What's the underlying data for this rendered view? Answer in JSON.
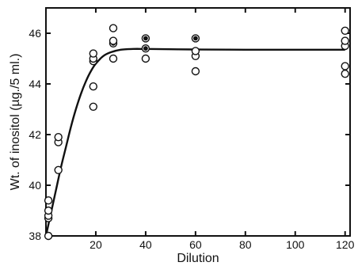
{
  "chart_data": {
    "type": "scatter",
    "xlabel": "Dilution",
    "ylabel": "Wt. of inositol (µg./5 ml.)",
    "xlim": [
      0,
      122
    ],
    "ylim": [
      38,
      47
    ],
    "x_ticks": [
      20,
      40,
      60,
      80,
      100,
      120
    ],
    "y_ticks": [
      38,
      40,
      42,
      44,
      46
    ],
    "grid": false,
    "series": [
      {
        "points": [
          [
            1,
            38.0
          ],
          [
            1,
            38.7
          ],
          [
            1,
            38.8
          ],
          [
            1,
            39.0
          ],
          [
            1,
            39.4
          ],
          [
            5,
            40.6
          ],
          [
            5,
            41.7
          ],
          [
            5,
            41.9
          ],
          [
            19,
            43.1
          ],
          [
            19,
            43.9
          ],
          [
            19,
            44.9
          ],
          [
            19,
            45.0
          ],
          [
            19,
            45.2
          ],
          [
            27,
            45.0
          ],
          [
            27,
            45.6
          ],
          [
            27,
            45.7
          ],
          [
            27,
            46.2
          ],
          [
            40,
            45.0
          ],
          [
            40,
            45.4
          ],
          [
            40,
            45.8
          ],
          [
            60,
            44.5
          ],
          [
            60,
            45.1
          ],
          [
            60,
            45.3
          ],
          [
            60,
            45.8
          ],
          [
            120,
            44.4
          ],
          [
            120,
            44.7
          ],
          [
            120,
            45.5
          ],
          [
            120,
            45.7
          ],
          [
            120,
            46.1
          ]
        ],
        "filled_points": [
          [
            27,
            45.6
          ],
          [
            40,
            45.4
          ],
          [
            40,
            45.8
          ],
          [
            60,
            45.8
          ]
        ]
      },
      {
        "type": "line",
        "x": [
          0,
          2,
          4,
          6,
          8,
          10,
          12,
          14,
          16,
          18,
          20,
          23,
          26,
          30,
          35,
          40,
          50,
          60,
          80,
          100,
          120
        ],
        "y": [
          38.0,
          38.9,
          39.8,
          40.7,
          41.5,
          42.3,
          43.0,
          43.6,
          44.1,
          44.5,
          44.8,
          45.1,
          45.25,
          45.35,
          45.38,
          45.38,
          45.37,
          45.36,
          45.35,
          45.35,
          45.35
        ]
      }
    ]
  }
}
